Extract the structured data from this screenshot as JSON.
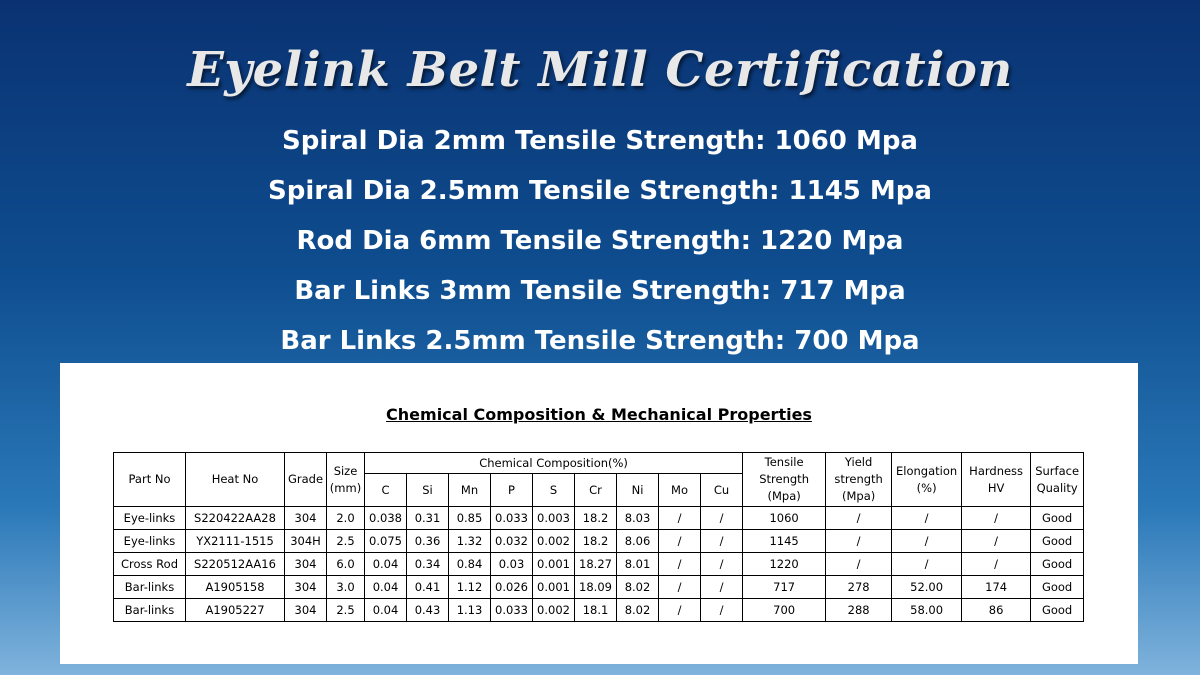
{
  "slide": {
    "title": "Eyelink Belt Mill Certification",
    "specs": [
      "Spiral Dia 2mm Tensile Strength: 1060 Mpa",
      "Spiral Dia 2.5mm Tensile Strength: 1145 Mpa",
      "Rod Dia 6mm Tensile Strength: 1220 Mpa",
      "Bar Links 3mm Tensile Strength: 717 Mpa",
      "Bar Links 2.5mm Tensile Strength: 700 Mpa"
    ]
  },
  "table": {
    "title": "Chemical Composition & Mechanical Properties",
    "headers": {
      "part_no": "Part No",
      "heat_no": "Heat No",
      "grade": "Grade",
      "size": "Size",
      "size_unit": "(mm)",
      "chem_group": "Chemical Composition(%)",
      "chem": [
        "C",
        "Si",
        "Mn",
        "P",
        "S",
        "Cr",
        "Ni",
        "Mo",
        "Cu"
      ],
      "tensile": [
        "Tensile",
        "Strength",
        "(Mpa)"
      ],
      "yield": [
        "Yield",
        "strength",
        "(Mpa)"
      ],
      "elongation": [
        "Elongation",
        "(%)"
      ],
      "hardness": [
        "Hardness",
        "HV"
      ],
      "surface": [
        "Surface",
        "Quality"
      ]
    },
    "rows": [
      [
        "Eye-links",
        "S220422AA28",
        "304",
        "2.0",
        "0.038",
        "0.31",
        "0.85",
        "0.033",
        "0.003",
        "18.2",
        "8.03",
        "/",
        "/",
        "1060",
        "/",
        "/",
        "/",
        "Good"
      ],
      [
        "Eye-links",
        "YX2111-1515",
        "304H",
        "2.5",
        "0.075",
        "0.36",
        "1.32",
        "0.032",
        "0.002",
        "18.2",
        "8.06",
        "/",
        "/",
        "1145",
        "/",
        "/",
        "/",
        "Good"
      ],
      [
        "Cross Rod",
        "S220512AA16",
        "304",
        "6.0",
        "0.04",
        "0.34",
        "0.84",
        "0.03",
        "0.001",
        "18.27",
        "8.01",
        "/",
        "/",
        "1220",
        "/",
        "/",
        "/",
        "Good"
      ],
      [
        "Bar-links",
        "A1905158",
        "304",
        "3.0",
        "0.04",
        "0.41",
        "1.12",
        "0.026",
        "0.001",
        "18.09",
        "8.02",
        "/",
        "/",
        "717",
        "278",
        "52.00",
        "174",
        "Good"
      ],
      [
        "Bar-links",
        "A1905227",
        "304",
        "2.5",
        "0.04",
        "0.43",
        "1.13",
        "0.033",
        "0.002",
        "18.1",
        "8.02",
        "/",
        "/",
        "700",
        "288",
        "58.00",
        "86",
        "Good"
      ]
    ]
  }
}
